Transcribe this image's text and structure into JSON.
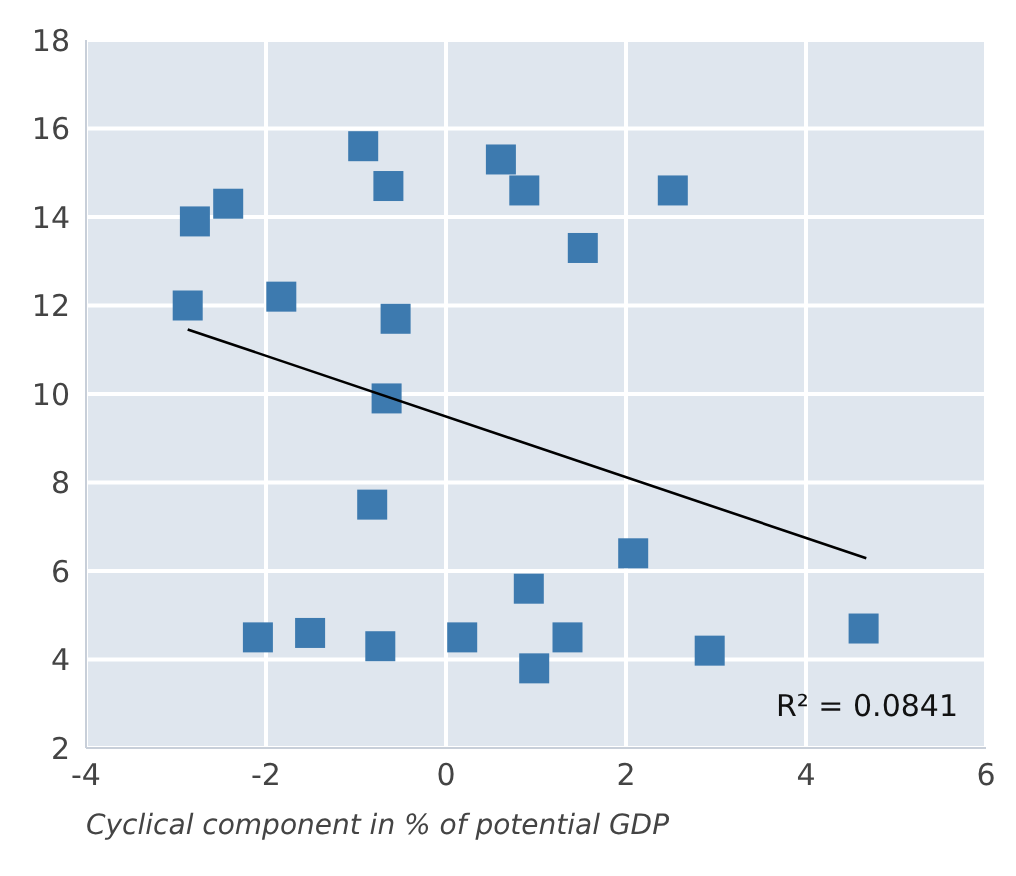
{
  "chart_data": {
    "type": "scatter",
    "xlabel": "Cyclical component in % of potential GDP",
    "xlim": [
      -4,
      6
    ],
    "xticks": [
      -4,
      -2,
      0,
      2,
      4,
      6
    ],
    "ylim": [
      2,
      18
    ],
    "yticks": [
      2,
      4,
      6,
      8,
      10,
      12,
      14,
      16,
      18
    ],
    "grid": true,
    "annotations": [
      "R² = 0.0841"
    ],
    "series": [
      {
        "type": "scatter",
        "marker": "square",
        "color": "#3d7aaf",
        "x": [
          -2.87,
          -2.79,
          -2.42,
          -1.83,
          -0.92,
          -0.64,
          -0.56,
          -0.66,
          -0.82,
          -2.09,
          -1.51,
          -0.73,
          0.18,
          0.61,
          0.87,
          2.52,
          1.52,
          2.08,
          0.92,
          1.35,
          0.98,
          2.93,
          4.64
        ],
        "values": [
          12.0,
          13.9,
          14.3,
          12.2,
          15.6,
          14.7,
          11.7,
          9.9,
          7.5,
          4.5,
          4.6,
          4.3,
          4.5,
          15.3,
          14.6,
          14.6,
          13.3,
          6.4,
          5.6,
          4.5,
          3.8,
          4.2,
          4.7
        ]
      },
      {
        "type": "line",
        "marker": "none",
        "color": "#000000",
        "x": [
          -2.87,
          4.67
        ],
        "values": [
          11.46,
          6.29
        ]
      }
    ]
  }
}
